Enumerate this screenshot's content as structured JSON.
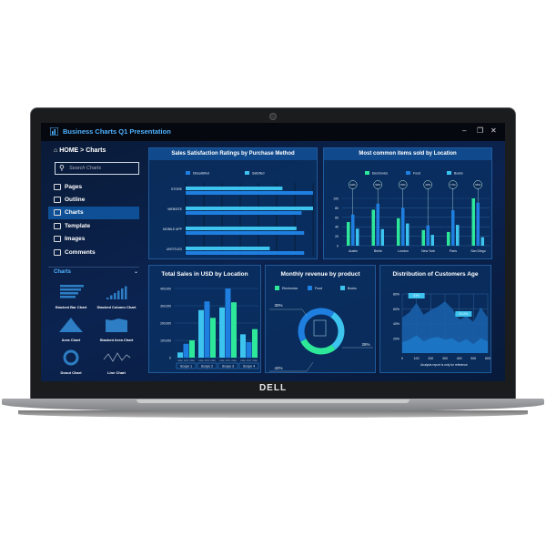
{
  "window": {
    "title": "Business Charts Q1 Presentation",
    "controls": [
      "–",
      "❐",
      "✕"
    ]
  },
  "brand": "DELL",
  "sidebar": {
    "breadcrumb_home": "HOME",
    "breadcrumb_sep": ">",
    "breadcrumb_current": "Charts",
    "search_placeholder": "Search Charts",
    "items": [
      {
        "label": "Pages",
        "icon": "grid-icon"
      },
      {
        "label": "Outline",
        "icon": "outline-icon"
      },
      {
        "label": "Charts",
        "icon": "bar-chart-icon",
        "active": true
      },
      {
        "label": "Template",
        "icon": "template-icon"
      },
      {
        "label": "Images",
        "icon": "image-icon"
      },
      {
        "label": "Comments",
        "icon": "comment-icon"
      }
    ],
    "section_title": "Charts",
    "chart_types": [
      "Stacked Bar Chart",
      "Stacked Column Chart",
      "Area Chart",
      "Stacked Area Chart",
      "Donut Chart",
      "Line Chart"
    ]
  },
  "colors": {
    "electronics": "#2ee89a",
    "food": "#1f7fe0",
    "books": "#3cc4ef",
    "dissatisfied": "#1f7fe0",
    "satisfied": "#3cc4ef"
  },
  "chart_data": [
    {
      "type": "bar",
      "orientation": "horizontal",
      "title": "Sales Satisfaction Ratings by Purchase Method",
      "categories": [
        "STORE",
        "WEBSITE",
        "MOBILE APP",
        "UNTITLED"
      ],
      "series": [
        {
          "name": "Dissatisfied",
          "values": [
            100,
            91,
            93,
            93
          ]
        },
        {
          "name": "Satisfied",
          "values": [
            76,
            100,
            87,
            66
          ]
        }
      ],
      "legend": "top",
      "grid": true
    },
    {
      "type": "bar",
      "title": "Most common items sold by Location",
      "categories": [
        "Austin",
        "Berlin",
        "London",
        "New York",
        "Paris",
        "San Diego"
      ],
      "yticks": [
        0,
        20,
        40,
        60,
        80,
        100
      ],
      "ylim": [
        0,
        100
      ],
      "series": [
        {
          "name": "Electronics",
          "values": [
            50,
            76,
            58,
            33,
            29,
            100
          ]
        },
        {
          "name": "Food",
          "values": [
            66,
            89,
            80,
            43,
            75,
            91
          ]
        },
        {
          "name": "Books",
          "values": [
            36,
            35,
            47,
            23,
            44,
            18
          ]
        }
      ],
      "annotations": [
        "64%",
        "90%",
        "79%",
        "40%",
        "77%",
        "95%"
      ],
      "legend": "top"
    },
    {
      "type": "bar",
      "title": "Total Sales in USD by Location",
      "categories": [
        "Scope 1",
        "Scope 2",
        "Scope 3",
        "Scope 4"
      ],
      "sub_labels": [
        "FY16",
        "FY17",
        "FY18"
      ],
      "yticks": [
        "0",
        "100,000",
        "200,000",
        "300,000",
        "400,000"
      ],
      "ylim": [
        0,
        400000
      ],
      "values": [
        [
          30000,
          80000,
          100000
        ],
        [
          275000,
          325000,
          230000
        ],
        [
          290000,
          400000,
          320000
        ],
        [
          135000,
          90000,
          165000
        ]
      ]
    },
    {
      "type": "pie",
      "donut": true,
      "title": "Monthly revenue by product",
      "labels": [
        "Electronics",
        "Food",
        "Books"
      ],
      "values": [
        28,
        42,
        30
      ],
      "data_labels": [
        "28%",
        "42%",
        "30%"
      ],
      "legend": "top"
    },
    {
      "type": "area",
      "title": "Distribution of Customers Age",
      "xticks": [
        0,
        100,
        200,
        300,
        400,
        500,
        600
      ],
      "yticks": [
        "20%",
        "40%",
        "60%",
        "80%"
      ],
      "xlim": [
        0,
        600
      ],
      "ylim": [
        0,
        80
      ],
      "x": [
        0,
        50,
        100,
        150,
        200,
        250,
        300,
        350,
        400,
        450,
        500,
        550,
        600
      ],
      "series": [
        {
          "values": [
            48,
            55,
            68,
            52,
            58,
            63,
            70,
            60,
            45,
            50,
            42,
            62,
            48
          ]
        },
        {
          "values": [
            15,
            18,
            24,
            16,
            20,
            22,
            18,
            20,
            14,
            19,
            12,
            20,
            16
          ]
        }
      ],
      "callouts": [
        "63%",
        "51.6%"
      ],
      "note": "Analysis report is only for reference"
    }
  ]
}
